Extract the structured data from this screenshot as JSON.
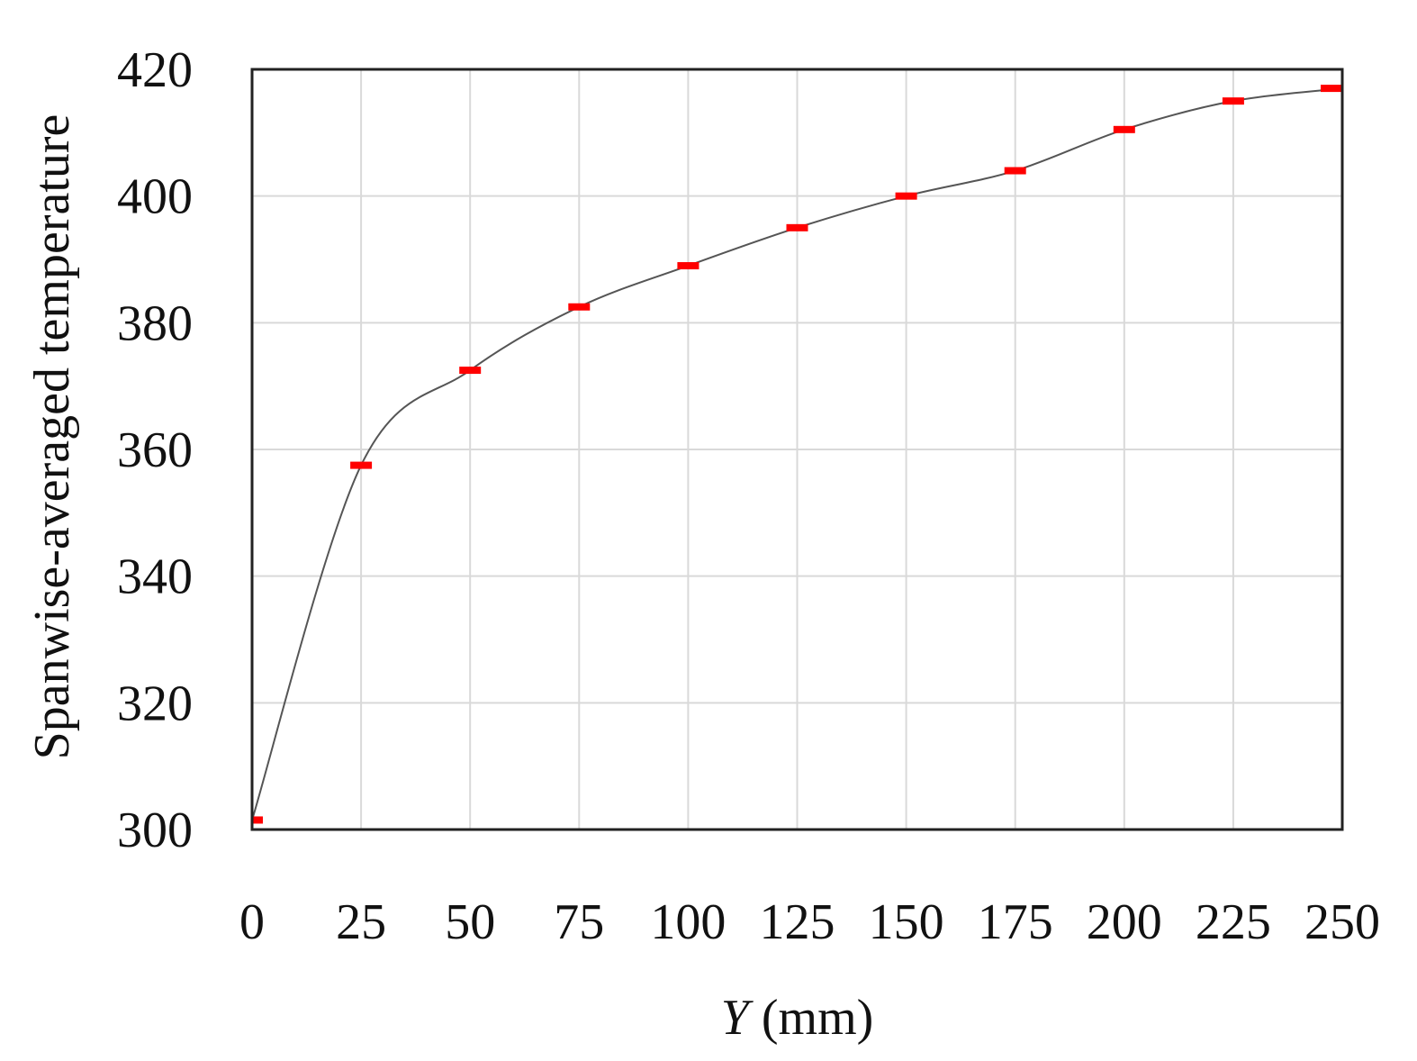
{
  "chart_data": {
    "type": "line",
    "xlabel_symbol": "Y",
    "xlabel_unit": " (mm)",
    "ylabel": "Spanwise-averaged temperature",
    "xlim": [
      0,
      250
    ],
    "ylim": [
      300,
      420
    ],
    "xticks": [
      "0",
      "25",
      "50",
      "75",
      "100",
      "125",
      "150",
      "175",
      "200",
      "225",
      "250"
    ],
    "yticks": [
      "300",
      "320",
      "340",
      "360",
      "380",
      "400",
      "420"
    ],
    "grid": true,
    "series": [
      {
        "x": [
          0,
          25,
          50,
          75,
          100,
          125,
          150,
          175,
          200,
          225,
          250
        ],
        "values": [
          301.5,
          357.5,
          372.5,
          382.5,
          389,
          395,
          400,
          404,
          410.5,
          415,
          417
        ],
        "line_color": "#555555",
        "marker_color": "#ff0000"
      }
    ]
  }
}
